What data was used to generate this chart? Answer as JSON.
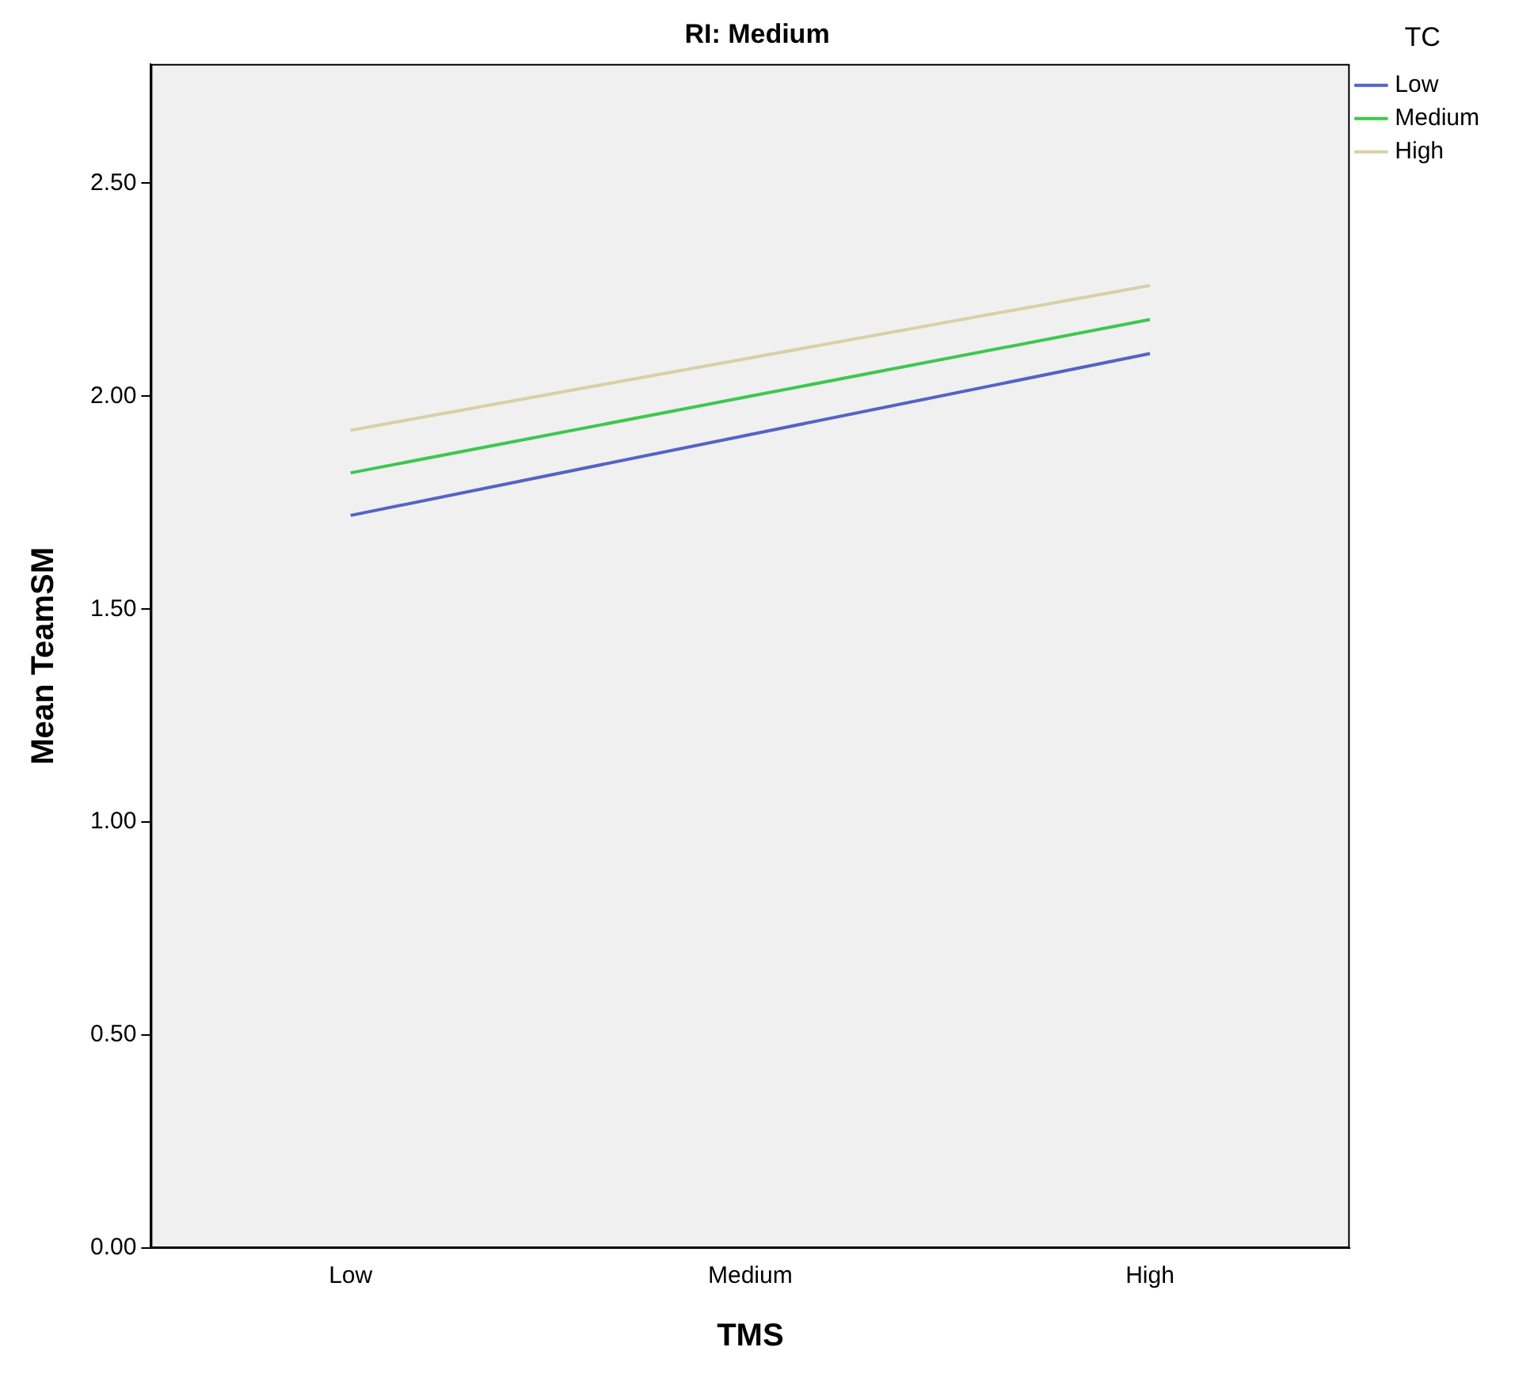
{
  "chart_data": {
    "type": "line",
    "title": "RI: Medium",
    "xlabel": "TMS",
    "ylabel": "Mean TeamSM",
    "legend_title": "TC",
    "categories": [
      "Low",
      "Medium",
      "High"
    ],
    "series": [
      {
        "name": "Low",
        "color": "#5463c5",
        "values": [
          1.72,
          1.91,
          2.1
        ]
      },
      {
        "name": "Medium",
        "color": "#3ec74e",
        "values": [
          1.82,
          2.0,
          2.18
        ]
      },
      {
        "name": "High",
        "color": "#d8d0a8",
        "values": [
          1.92,
          2.09,
          2.26
        ]
      }
    ],
    "ylim": [
      0,
      2.78
    ],
    "yticks": [
      {
        "value": 0,
        "label": "0.00"
      },
      {
        "value": 0.5,
        "label": "0.50"
      },
      {
        "value": 1,
        "label": "1.00"
      },
      {
        "value": 1.5,
        "label": "1.50"
      },
      {
        "value": 2,
        "label": "2.00"
      },
      {
        "value": 2.5,
        "label": "2.50"
      }
    ],
    "grid": false,
    "legend": "top right",
    "marker": "none",
    "line_style": "solid"
  }
}
